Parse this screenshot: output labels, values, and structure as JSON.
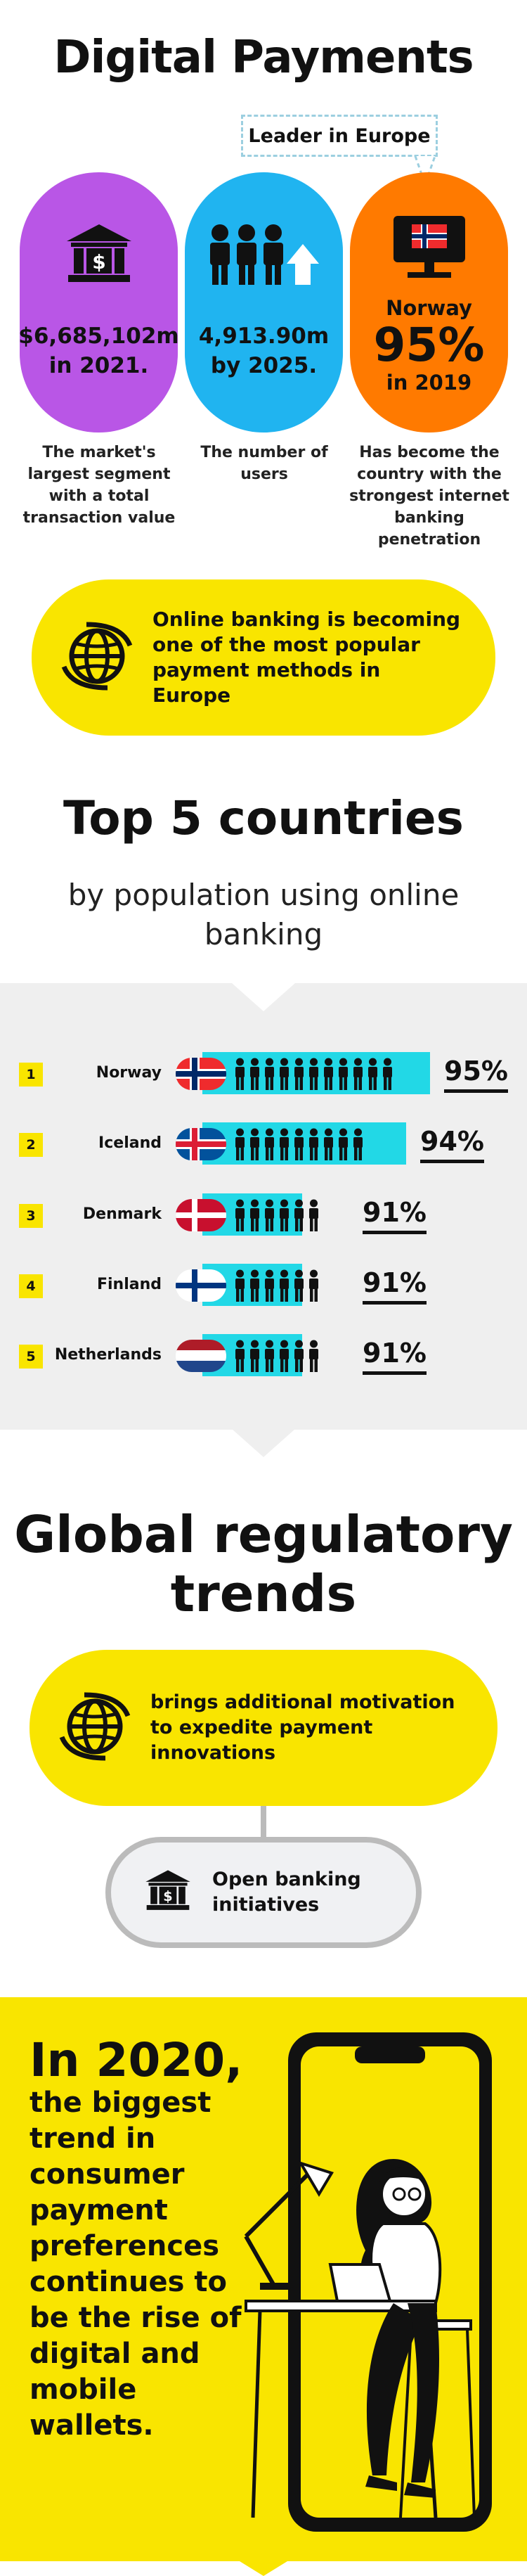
{
  "header": {
    "title": "Digital Payments",
    "leader_label": "Leader in Europe"
  },
  "stats": [
    {
      "line1": "$6,685,102m",
      "line2": "in 2021.",
      "desc": "The market's largest segment with a total transaction value",
      "color": "#b956e6",
      "icon": "bank-icon"
    },
    {
      "line1": "4,913.90m",
      "line2": "by 2025.",
      "desc": "The number of users",
      "color": "#20b4f0",
      "icon": "users-growth-icon"
    },
    {
      "country": "Norway",
      "percent": "95%",
      "year": "in 2019",
      "desc": "Has become the country with the strongest internet banking penetration",
      "color": "#ff7a00",
      "icon": "monitor-flag-icon"
    }
  ],
  "online_banking": {
    "text": "Online banking is becoming one of the most popular payment methods in Europe",
    "icon": "globe-icon"
  },
  "top5": {
    "title": "Top 5 countries",
    "subtitle": "by population using online banking",
    "rows": [
      {
        "rank": "1",
        "name": "Norway",
        "percent": "95%",
        "value": 95,
        "people": 11,
        "flag": "norway"
      },
      {
        "rank": "2",
        "name": "Iceland",
        "percent": "94%",
        "value": 94,
        "people": 9,
        "flag": "iceland"
      },
      {
        "rank": "3",
        "name": "Denmark",
        "percent": "91%",
        "value": 91,
        "people": 6,
        "flag": "denmark"
      },
      {
        "rank": "4",
        "name": "Finland",
        "percent": "91%",
        "value": 91,
        "people": 6,
        "flag": "finland"
      },
      {
        "rank": "5",
        "name": "Netherlands",
        "percent": "91%",
        "value": 91,
        "people": 6,
        "flag": "netherlands"
      }
    ]
  },
  "global": {
    "title_line1": "Global regulatory",
    "title_line2": "trends",
    "motivation": "brings additional motivation to expedite payment innovations",
    "open_banking": "Open banking initiatives"
  },
  "wallets": {
    "year": "In 2020,",
    "text": "the biggest trend in consumer payment preferences continues to be the rise of digital and mobile wallets."
  },
  "colors": {
    "yellow": "#f9e500",
    "cyan": "#22d8e6",
    "purple": "#b956e6",
    "blue": "#20b4f0",
    "orange": "#ff7a00"
  }
}
